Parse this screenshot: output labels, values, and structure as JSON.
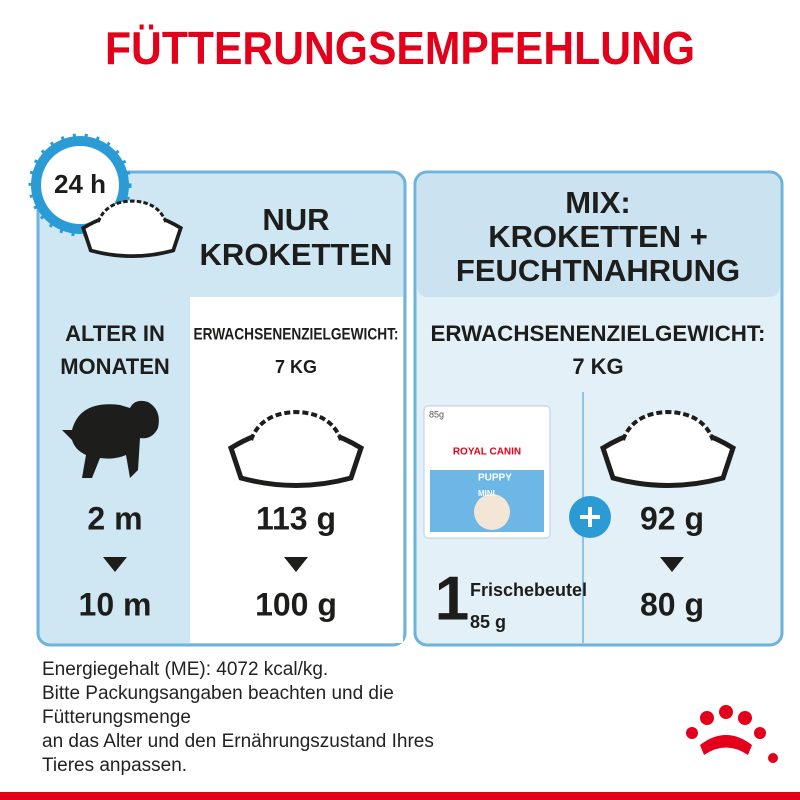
{
  "title": "FÜTTERUNGSEMPFEHLUNG",
  "clock_label": "24 h",
  "left_header": [
    "NUR",
    "KROKETTEN"
  ],
  "age_header": [
    "ALTER IN",
    "MONATEN"
  ],
  "left_weight": {
    "label": "ERWACHSENENZIELGEWICHT:",
    "value": "7 KG"
  },
  "ages": {
    "start": "2 m",
    "end": "10 m"
  },
  "kibble_only": {
    "start": "113 g",
    "end": "100 g"
  },
  "mix_header": [
    "MIX:",
    "KROKETTEN +",
    "FEUCHTNAHRUNG"
  ],
  "mix_weight": {
    "label": "ERWACHSENENZIELGEWICHT:",
    "value": "7 KG"
  },
  "pouch_image": {
    "size": "85g",
    "brand": "ROYAL CANIN",
    "product": "PUPPY",
    "variant": "MINI"
  },
  "pouch": {
    "count": "1",
    "label": "Frischebeutel",
    "weight": "85 g"
  },
  "mix_kibble": {
    "start": "92 g",
    "end": "80 g"
  },
  "footer": [
    "Energiegehalt (ME): 4072 kcal/kg.",
    "Bitte Packungsangaben beachten und die",
    "Fütterungsmenge",
    "an das Alter und den Ernährungszustand Ihres",
    "Tieres anpassen."
  ]
}
